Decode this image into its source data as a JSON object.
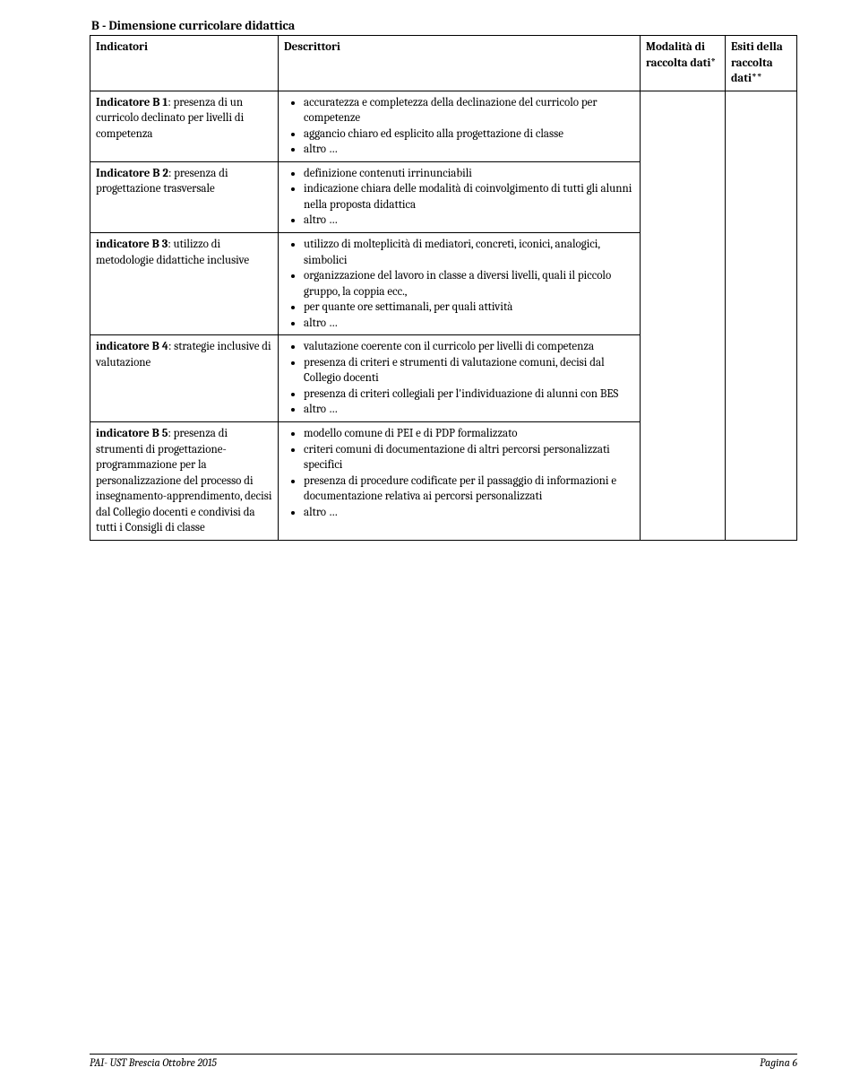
{
  "section": {
    "title": "B - Dimensione curricolare didattica"
  },
  "headers": {
    "indicatori": "Indicatori",
    "descrittori": "Descrittori",
    "modalita": "Modalità di raccolta dati*",
    "esiti": "Esiti della raccolta dati**"
  },
  "rows": [
    {
      "indicator_prefix": "Indicatore B 1",
      "indicator_rest": ": presenza di un curricolo declinato per livelli di competenza",
      "descriptors": [
        "accuratezza e completezza della declinazione del curricolo per competenze",
        "aggancio chiaro ed esplicito alla progettazione di classe",
        "altro …"
      ]
    },
    {
      "indicator_prefix": "Indicatore B 2",
      "indicator_rest": ": presenza di progettazione trasversale",
      "descriptors": [
        "definizione contenuti irrinunciabili",
        "indicazione chiara delle modalità di coinvolgimento di tutti gli alunni nella proposta didattica",
        "altro …"
      ]
    },
    {
      "indicator_prefix": "indicatore B 3",
      "indicator_rest": ": utilizzo di metodologie didattiche inclusive",
      "descriptors": [
        "utilizzo di molteplicità di mediatori, concreti, iconici, analogici, simbolici",
        "organizzazione del lavoro in classe a diversi livelli, quali il piccolo gruppo, la coppia ecc.,",
        "per quante ore settimanali, per quali attività",
        "altro …"
      ]
    },
    {
      "indicator_prefix": "indicatore B 4",
      "indicator_rest": ": strategie inclusive di valutazione",
      "descriptors": [
        "valutazione coerente con il curricolo per livelli di competenza",
        "presenza di criteri e strumenti di valutazione comuni, decisi dal Collegio docenti",
        "presenza di criteri collegiali per l'individuazione di alunni con BES",
        "altro …"
      ]
    },
    {
      "indicator_prefix": "indicatore B 5",
      "indicator_rest": ": presenza di strumenti di progettazione-programmazione per la personalizzazione del processo di insegnamento-apprendimento, decisi dal Collegio docenti e condivisi da tutti i Consigli di classe",
      "descriptors": [
        "modello comune di PEI e di PDP formalizzato",
        "criteri comuni di documentazione di altri percorsi personalizzati specifici",
        "presenza di procedure codificate per il passaggio di informazioni e documentazione relativa ai percorsi personalizzati",
        "altro …"
      ]
    }
  ],
  "footer": {
    "left": "PAI- UST Brescia Ottobre 2015",
    "right": "Pagina 6"
  }
}
